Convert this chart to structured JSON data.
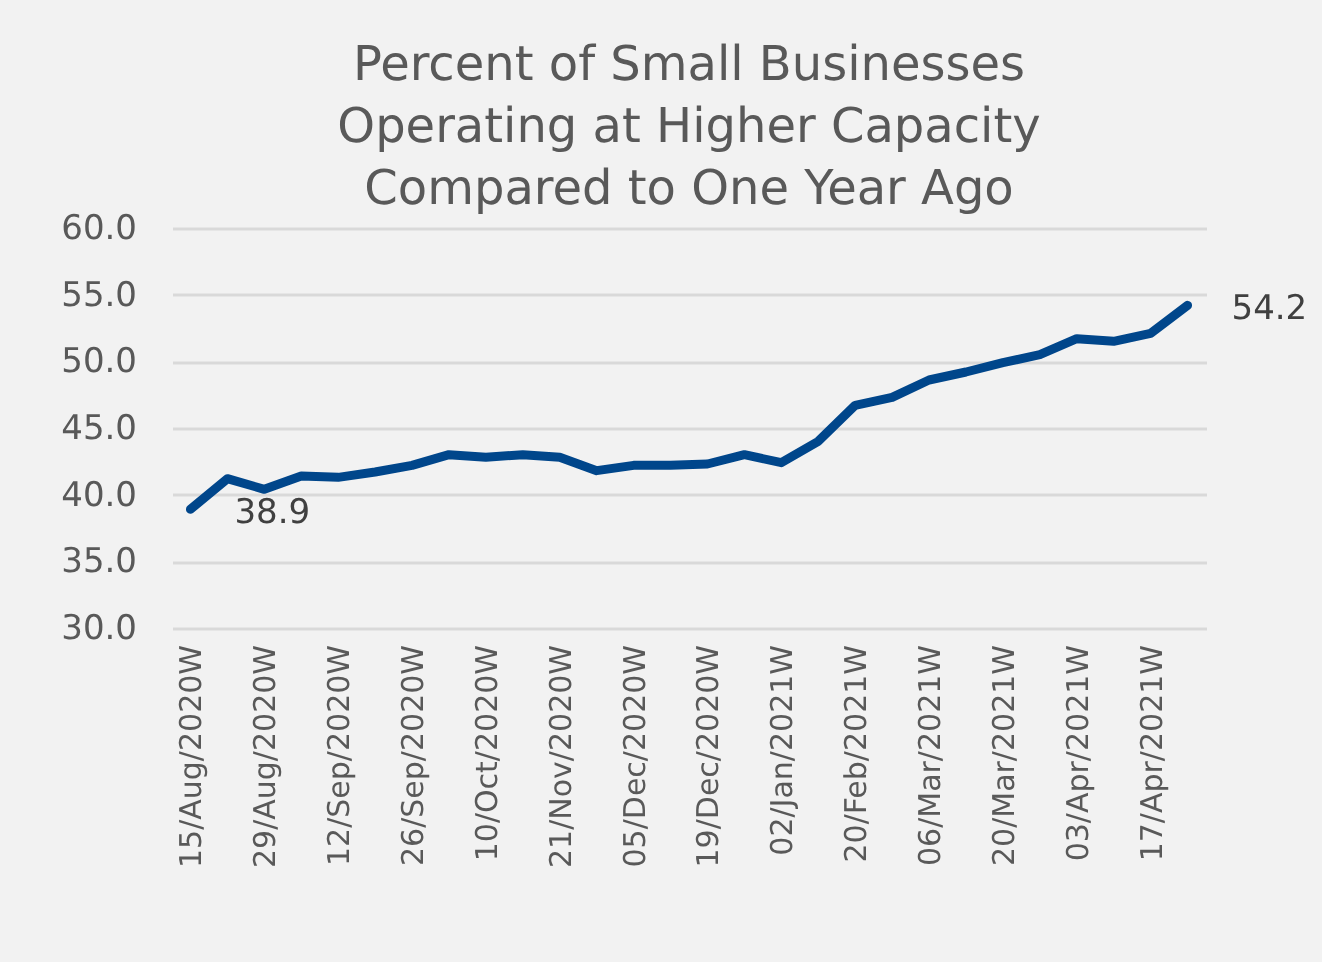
{
  "chart_data": {
    "type": "line",
    "title": "Percent of Small Businesses Operating at Higher Capacity Compared to One Year Ago",
    "categories": [
      "15/Aug/2020W",
      null,
      "29/Aug/2020W",
      null,
      "12/Sep/2020W",
      null,
      "26/Sep/2020W",
      null,
      "10/Oct/2020W",
      null,
      "21/Nov/2020W",
      null,
      "05/Dec/2020W",
      null,
      "19/Dec/2020W",
      null,
      "02/Jan/2021W",
      null,
      "20/Feb/2021W",
      null,
      "06/Mar/2021W",
      null,
      "20/Mar/2021W",
      null,
      "03/Apr/2021W",
      null,
      "17/Apr/2021W",
      null
    ],
    "series": [
      {
        "color": "#00468b",
        "values": [
          38.9,
          41.2,
          40.4,
          41.4,
          41.3,
          41.7,
          42.2,
          43.0,
          42.8,
          43.0,
          42.8,
          41.8,
          42.2,
          42.2,
          42.3,
          43.0,
          42.4,
          44.0,
          46.7,
          47.3,
          48.6,
          49.2,
          49.9,
          50.5,
          51.7,
          51.5,
          52.1,
          54.2
        ],
        "value_labels": [
          "38.9",
          null,
          null,
          null,
          null,
          null,
          null,
          null,
          null,
          null,
          null,
          null,
          null,
          null,
          null,
          null,
          null,
          null,
          null,
          null,
          null,
          null,
          null,
          null,
          null,
          null,
          null,
          "54.2"
        ]
      }
    ],
    "ylim": [
      30,
      60
    ],
    "yticks": [
      {
        "value": 30,
        "label": "30.0"
      },
      {
        "value": 35,
        "label": "35.0"
      },
      {
        "value": 40,
        "label": "40.0"
      },
      {
        "value": 45,
        "label": "45.0"
      },
      {
        "value": 50,
        "label": "50.0"
      },
      {
        "value": 55,
        "label": "55.0"
      },
      {
        "value": 60,
        "label": "60.0"
      }
    ],
    "grid": "y",
    "line_style": "solid"
  }
}
